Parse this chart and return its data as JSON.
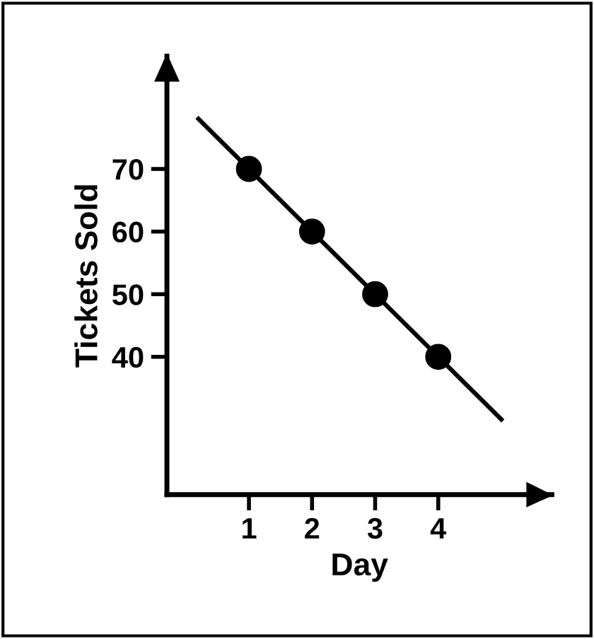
{
  "chart_data": {
    "type": "scatter",
    "xlabel": "Day",
    "ylabel": "Tickets Sold",
    "x": [
      1,
      2,
      3,
      4
    ],
    "xlim": [
      -0.3,
      5.8
    ],
    "ylim": [
      18,
      88
    ],
    "xticks": [
      1,
      2,
      3,
      4
    ],
    "yticks": [
      40,
      50,
      60,
      70
    ],
    "marker": "circle",
    "grid": false,
    "legend": false,
    "series": [
      {
        "color": "#000000",
        "values": [
          70,
          60,
          50,
          40
        ]
      },
      {
        "type": "line",
        "color": "#000000",
        "x": [
          0.2,
          5.0
        ],
        "values": [
          78,
          30
        ],
        "marker": "none"
      }
    ]
  }
}
